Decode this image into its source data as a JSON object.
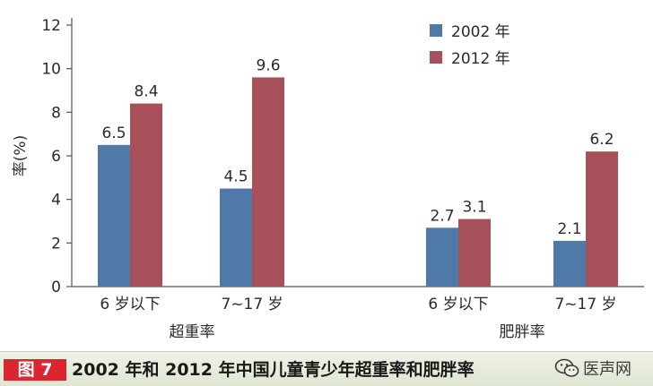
{
  "chart_data": {
    "type": "bar",
    "title": "",
    "xlabel": "",
    "ylabel": "率(%)",
    "ylim": [
      0,
      12
    ],
    "yticks": [
      "0",
      "2",
      "4",
      "6",
      "8",
      "10",
      "12"
    ],
    "grid": false,
    "legend_position": "top-right",
    "groups": [
      {
        "name": "超重率",
        "categories": [
          "6 岁以下",
          "7~17 岁"
        ],
        "series": [
          {
            "name": "2002 年",
            "values": [
              6.5,
              4.5
            ],
            "labels": [
              "6.5",
              "4.5"
            ]
          },
          {
            "name": "2012 年",
            "values": [
              8.4,
              9.6
            ],
            "labels": [
              "8.4",
              "9.6"
            ]
          }
        ]
      },
      {
        "name": "肥胖率",
        "categories": [
          "6 岁以下",
          "7~17 岁"
        ],
        "series": [
          {
            "name": "2002 年",
            "values": [
              2.7,
              2.1
            ],
            "labels": [
              "2.7",
              "2.1"
            ]
          },
          {
            "name": "2012 年",
            "values": [
              3.1,
              6.2
            ],
            "labels": [
              "3.1",
              "6.2"
            ]
          }
        ]
      }
    ],
    "legend": [
      "2002 年",
      "2012 年"
    ],
    "colors": {
      "2002 年": "#4f79a8",
      "2012 年": "#a8505a"
    }
  },
  "caption": {
    "tag": "图 7",
    "title": "2002 年和 2012 年中国儿童青少年超重率和肥胖率"
  },
  "watermark": {
    "text": "医声网",
    "icon": "wechat-icon"
  }
}
